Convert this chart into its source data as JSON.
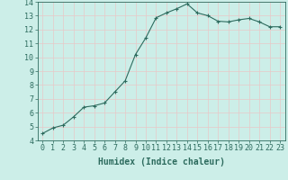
{
  "x": [
    0,
    1,
    2,
    3,
    4,
    5,
    6,
    7,
    8,
    9,
    10,
    11,
    12,
    13,
    14,
    15,
    16,
    17,
    18,
    19,
    20,
    21,
    22,
    23
  ],
  "y": [
    4.5,
    4.9,
    5.1,
    5.7,
    6.4,
    6.5,
    6.7,
    7.5,
    8.3,
    10.2,
    11.4,
    12.85,
    13.2,
    13.5,
    13.85,
    13.2,
    13.0,
    12.6,
    12.55,
    12.7,
    12.8,
    12.55,
    12.2,
    12.2
  ],
  "xlabel": "Humidex (Indice chaleur)",
  "ylim": [
    4,
    14
  ],
  "xlim_min": -0.5,
  "xlim_max": 23.5,
  "yticks": [
    4,
    5,
    6,
    7,
    8,
    9,
    10,
    11,
    12,
    13,
    14
  ],
  "xticks": [
    0,
    1,
    2,
    3,
    4,
    5,
    6,
    7,
    8,
    9,
    10,
    11,
    12,
    13,
    14,
    15,
    16,
    17,
    18,
    19,
    20,
    21,
    22,
    23
  ],
  "line_color": "#2d6b5e",
  "marker": "+",
  "bg_color": "#cceee8",
  "grid_color": "#e8c8c8",
  "tick_color": "#2d6b5e",
  "xlabel_color": "#2d6b5e",
  "xlabel_fontsize": 7,
  "tick_fontsize": 6,
  "markersize": 3,
  "linewidth": 0.8
}
